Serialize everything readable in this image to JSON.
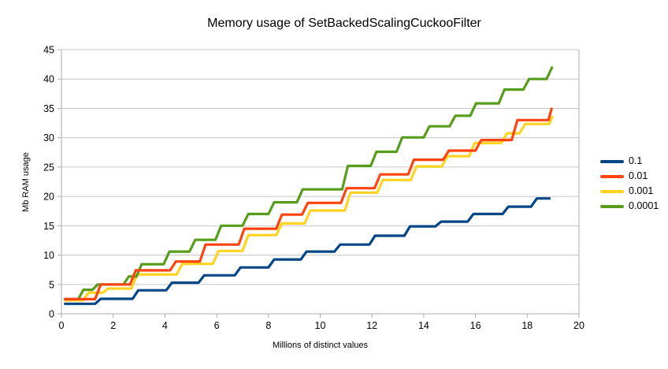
{
  "chart_data": {
    "type": "line",
    "title": "Memory usage of SetBackedScalingCuckooFilter",
    "xlabel": "Millions of distinct values",
    "ylabel": "Mb RAM usage",
    "xlim": [
      0,
      20
    ],
    "ylim": [
      0,
      45
    ],
    "xticks": [
      0,
      2,
      4,
      6,
      8,
      10,
      12,
      14,
      16,
      18,
      20
    ],
    "yticks": [
      0,
      5,
      10,
      15,
      20,
      25,
      30,
      35,
      40,
      45
    ],
    "grid": "horizontal",
    "legend_position": "right",
    "colors": {
      "background": "#ffffff",
      "gridline": "#c6c6c6",
      "axis": "#adadad",
      "text": "#000000"
    },
    "series": [
      {
        "name": "0.1",
        "color": "#004586",
        "points": [
          [
            0.1,
            1.7
          ],
          [
            1.3,
            1.7
          ],
          [
            1.52,
            2.55
          ],
          [
            2.75,
            2.55
          ],
          [
            2.97,
            4.0
          ],
          [
            4.05,
            4.0
          ],
          [
            4.27,
            5.3
          ],
          [
            5.3,
            5.3
          ],
          [
            5.52,
            6.55
          ],
          [
            6.7,
            6.55
          ],
          [
            6.92,
            7.9
          ],
          [
            8.0,
            7.9
          ],
          [
            8.22,
            9.25
          ],
          [
            9.25,
            9.25
          ],
          [
            9.47,
            10.6
          ],
          [
            10.55,
            10.6
          ],
          [
            10.77,
            11.8
          ],
          [
            11.9,
            11.8
          ],
          [
            12.12,
            13.3
          ],
          [
            13.25,
            13.3
          ],
          [
            13.47,
            14.9
          ],
          [
            14.45,
            14.9
          ],
          [
            14.67,
            15.7
          ],
          [
            15.7,
            15.7
          ],
          [
            15.92,
            17.0
          ],
          [
            17.05,
            17.0
          ],
          [
            17.27,
            18.25
          ],
          [
            18.15,
            18.25
          ],
          [
            18.37,
            19.65
          ],
          [
            18.9,
            19.65
          ]
        ]
      },
      {
        "name": "0.01",
        "color": "#ff420e",
        "points": [
          [
            0.1,
            2.5
          ],
          [
            1.3,
            2.5
          ],
          [
            1.52,
            5.0
          ],
          [
            2.65,
            5.0
          ],
          [
            2.87,
            7.4
          ],
          [
            4.2,
            7.4
          ],
          [
            4.42,
            8.9
          ],
          [
            5.35,
            8.9
          ],
          [
            5.57,
            11.8
          ],
          [
            6.85,
            11.8
          ],
          [
            7.07,
            14.5
          ],
          [
            8.3,
            14.5
          ],
          [
            8.52,
            16.9
          ],
          [
            9.3,
            16.9
          ],
          [
            9.52,
            18.9
          ],
          [
            10.8,
            18.9
          ],
          [
            11.02,
            21.4
          ],
          [
            12.1,
            21.4
          ],
          [
            12.32,
            23.75
          ],
          [
            13.4,
            23.75
          ],
          [
            13.62,
            26.25
          ],
          [
            14.75,
            26.25
          ],
          [
            14.97,
            27.8
          ],
          [
            16.0,
            27.8
          ],
          [
            16.22,
            29.6
          ],
          [
            17.4,
            29.6
          ],
          [
            17.62,
            33.0
          ],
          [
            18.82,
            33.0
          ],
          [
            18.95,
            35.1
          ]
        ]
      },
      {
        "name": "0.001",
        "color": "#ffd320",
        "points": [
          [
            0.1,
            2.3
          ],
          [
            0.85,
            2.3
          ],
          [
            1.05,
            3.6
          ],
          [
            1.6,
            3.6
          ],
          [
            1.8,
            4.3
          ],
          [
            2.7,
            4.3
          ],
          [
            2.92,
            6.7
          ],
          [
            4.45,
            6.7
          ],
          [
            4.67,
            8.5
          ],
          [
            5.85,
            8.5
          ],
          [
            6.07,
            10.7
          ],
          [
            7.0,
            10.7
          ],
          [
            7.22,
            13.4
          ],
          [
            8.3,
            13.4
          ],
          [
            8.52,
            15.4
          ],
          [
            9.4,
            15.4
          ],
          [
            9.62,
            17.6
          ],
          [
            10.95,
            17.6
          ],
          [
            11.17,
            20.65
          ],
          [
            12.2,
            20.65
          ],
          [
            12.42,
            22.8
          ],
          [
            13.5,
            22.8
          ],
          [
            13.72,
            25.1
          ],
          [
            14.7,
            25.1
          ],
          [
            14.92,
            26.85
          ],
          [
            15.75,
            26.85
          ],
          [
            15.97,
            29.1
          ],
          [
            17.0,
            29.1
          ],
          [
            17.22,
            30.75
          ],
          [
            17.7,
            30.75
          ],
          [
            17.92,
            32.35
          ],
          [
            18.85,
            32.35
          ],
          [
            18.98,
            33.7
          ]
        ]
      },
      {
        "name": "0.0001",
        "color": "#579d1c",
        "points": [
          [
            0.1,
            2.5
          ],
          [
            0.65,
            2.5
          ],
          [
            0.85,
            4.1
          ],
          [
            1.2,
            4.1
          ],
          [
            1.4,
            5.0
          ],
          [
            2.4,
            5.0
          ],
          [
            2.6,
            6.35
          ],
          [
            2.9,
            6.35
          ],
          [
            3.1,
            8.45
          ],
          [
            3.95,
            8.45
          ],
          [
            4.17,
            10.6
          ],
          [
            4.95,
            10.6
          ],
          [
            5.17,
            12.6
          ],
          [
            5.95,
            12.6
          ],
          [
            6.17,
            15.0
          ],
          [
            7.0,
            15.0
          ],
          [
            7.22,
            17.0
          ],
          [
            8.0,
            17.0
          ],
          [
            8.22,
            19.0
          ],
          [
            9.1,
            19.0
          ],
          [
            9.32,
            21.2
          ],
          [
            10.85,
            21.2
          ],
          [
            11.07,
            25.2
          ],
          [
            11.95,
            25.2
          ],
          [
            12.17,
            27.6
          ],
          [
            12.95,
            27.6
          ],
          [
            13.17,
            30.05
          ],
          [
            14.0,
            30.05
          ],
          [
            14.22,
            31.95
          ],
          [
            15.0,
            31.95
          ],
          [
            15.22,
            33.75
          ],
          [
            15.8,
            33.75
          ],
          [
            16.02,
            35.85
          ],
          [
            16.9,
            35.85
          ],
          [
            17.12,
            38.2
          ],
          [
            17.85,
            38.2
          ],
          [
            18.07,
            40.0
          ],
          [
            18.75,
            40.0
          ],
          [
            18.97,
            42.1
          ]
        ]
      }
    ]
  }
}
